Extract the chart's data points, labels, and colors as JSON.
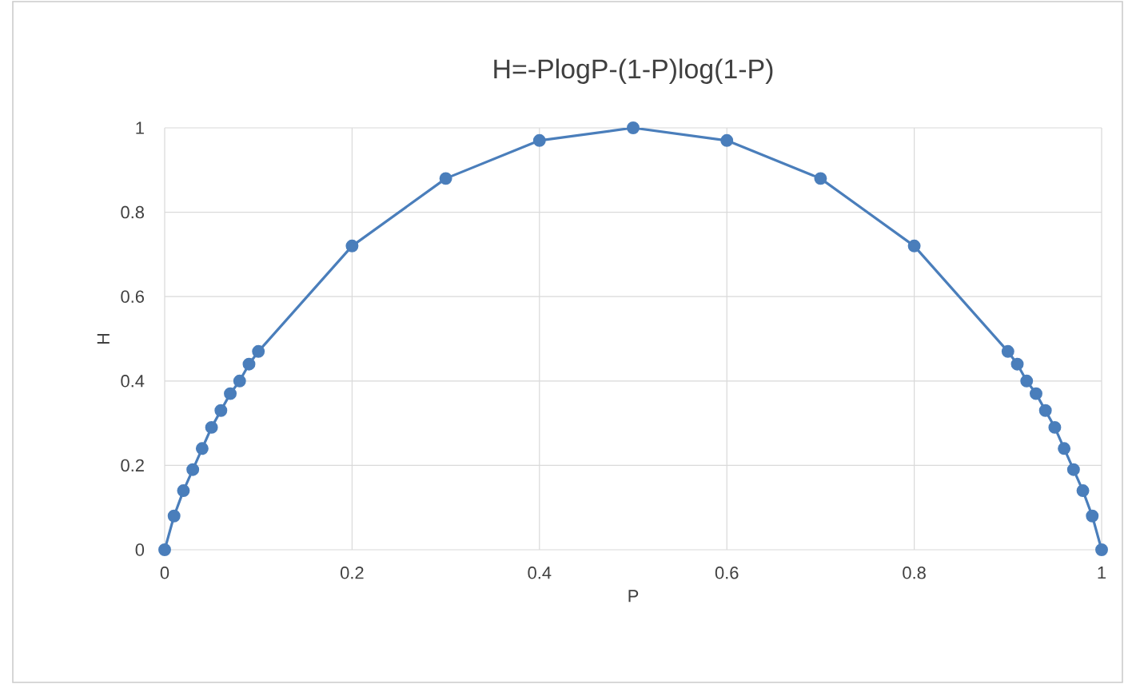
{
  "chart_data": {
    "type": "line",
    "title": "H=-PlogP-(1-P)log(1-P)",
    "xlabel": "P",
    "ylabel": "H",
    "x": [
      0,
      0.01,
      0.02,
      0.03,
      0.04,
      0.05,
      0.06,
      0.07,
      0.08,
      0.09,
      0.1,
      0.2,
      0.3,
      0.4,
      0.5,
      0.6,
      0.7,
      0.8,
      0.9,
      0.91,
      0.92,
      0.93,
      0.94,
      0.95,
      0.96,
      0.97,
      0.98,
      0.99,
      1
    ],
    "series": [
      {
        "color": "#4a7ebb",
        "values": [
          0,
          0.08,
          0.14,
          0.19,
          0.24,
          0.29,
          0.33,
          0.37,
          0.4,
          0.44,
          0.47,
          0.72,
          0.88,
          0.97,
          1,
          0.97,
          0.88,
          0.72,
          0.47,
          0.44,
          0.4,
          0.37,
          0.33,
          0.29,
          0.24,
          0.19,
          0.14,
          0.08,
          0
        ]
      }
    ],
    "xlim": [
      0,
      1
    ],
    "ylim": [
      0,
      1
    ],
    "xticks": [
      0,
      0.2,
      0.4,
      0.6,
      0.8,
      1
    ],
    "yticks": [
      0,
      0.2,
      0.4,
      0.6,
      0.8,
      1
    ],
    "grid": true,
    "marker": "circle",
    "line_style": "solid"
  }
}
